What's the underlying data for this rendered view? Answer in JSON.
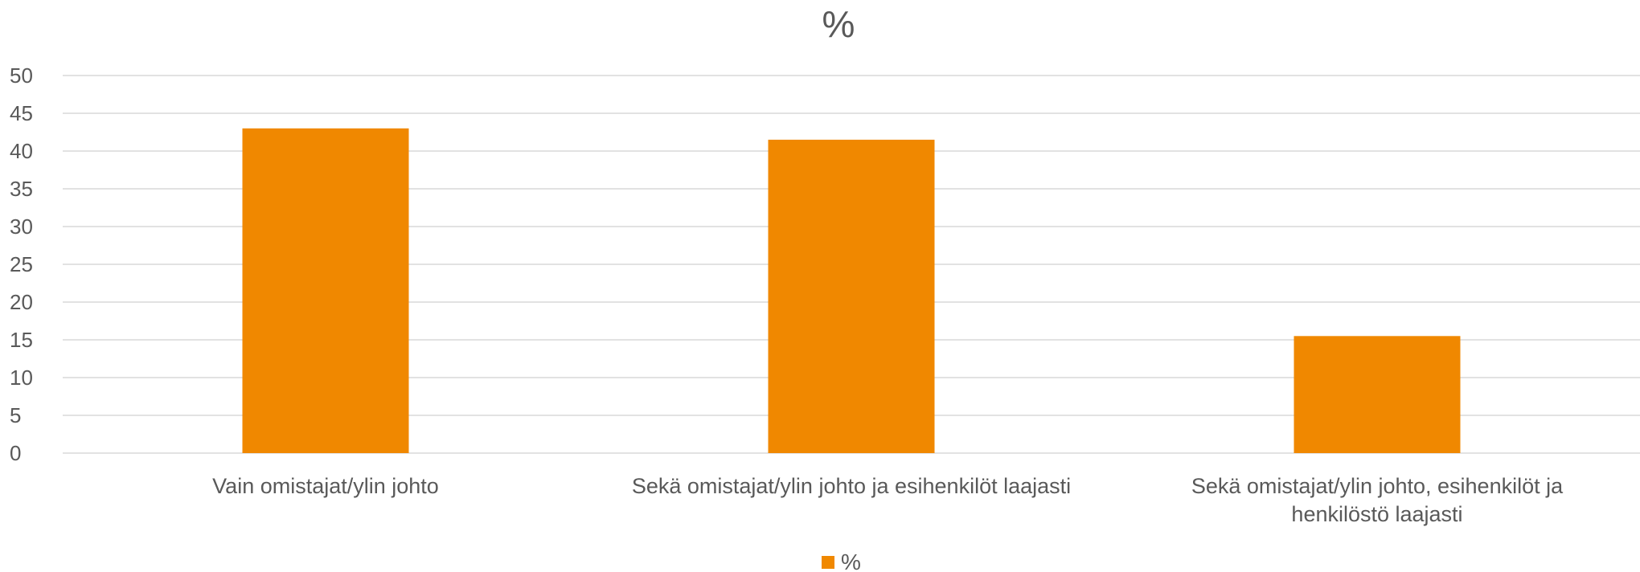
{
  "chart_data": {
    "type": "bar",
    "title": "%",
    "categories": [
      [
        "Vain omistajat/ylin johto"
      ],
      [
        "Sekä omistajat/ylin johto ja esihenkilöt laajasti"
      ],
      [
        "Sekä omistajat/ylin johto, esihenkilöt ja",
        "henkilöstö laajasti"
      ]
    ],
    "series": [
      {
        "name": "%",
        "values": [
          43,
          41.5,
          15.5
        ]
      }
    ],
    "ylim": [
      0,
      50
    ],
    "yticks": [
      0,
      5,
      10,
      15,
      20,
      25,
      30,
      35,
      40,
      45,
      50
    ],
    "grid": true,
    "legend_position": "bottom",
    "colors": {
      "bar": "#F08800",
      "text": "#595959",
      "grid": "#D9D9D9"
    }
  }
}
